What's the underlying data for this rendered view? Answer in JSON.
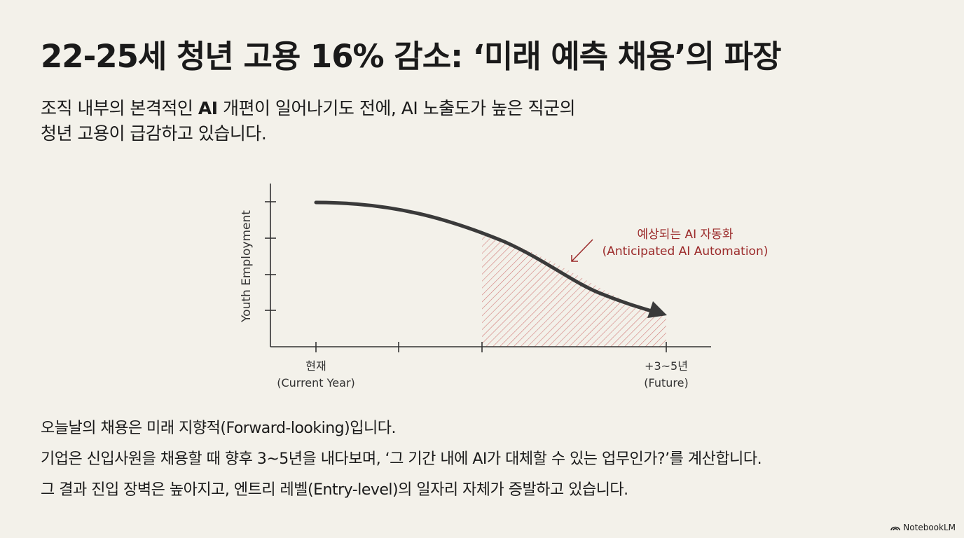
{
  "title": "22-25세 청년 고용 16% 감소: ‘미래 예측 채용’의 파장",
  "subtitle": {
    "lines": [
      [
        "조직 내부의 본격적인 ",
        "AI",
        " 개편이 일어나기도 전에, AI 노출도가 높은 직군의"
      ],
      [
        "청년 고용이 급감하고 있습니다."
      ]
    ]
  },
  "figure": {
    "y_axis_label": "Youth Employment",
    "annotation": [
      "예상되는 AI 자동화",
      "(Anticipated AI Automation)"
    ],
    "x_labels": [
      {
        "lines": [
          "현재",
          "(Current Year)"
        ]
      },
      {
        "lines": [
          "+3~5년",
          "(Future)"
        ]
      }
    ]
  },
  "body": [
    "오늘날의 채용은 미래 지향적(Forward-looking)입니다.",
    "기업은 신입사원을 채용할 때 향후 3~5년을 내다보며, ‘그 기간 내에 AI가 대체할 수 있는 업무인가?’를 계산합니다.",
    "그 결과 진입 장벽은 높아지고, 엔트리 레벨(Entry-level)의 일자리 자체가 증발하고 있습니다."
  ],
  "footer": {
    "brand": "NotebookLM"
  }
}
